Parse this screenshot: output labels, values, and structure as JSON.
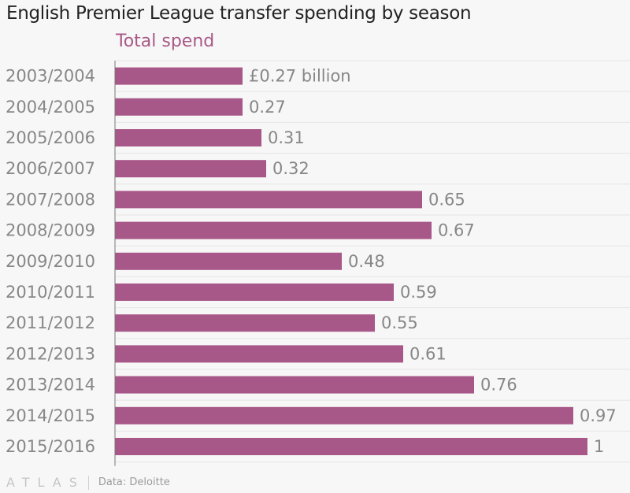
{
  "chart_data": {
    "type": "bar",
    "orientation": "horizontal",
    "title": "English Premier League transfer spending by season",
    "series": [
      {
        "name": "Total spend",
        "color": "#a85888",
        "values": [
          0.27,
          0.27,
          0.31,
          0.32,
          0.65,
          0.67,
          0.48,
          0.59,
          0.55,
          0.61,
          0.76,
          0.97,
          1
        ]
      }
    ],
    "categories": [
      "2003/2004",
      "2004/2005",
      "2005/2006",
      "2006/2007",
      "2007/2008",
      "2008/2009",
      "2009/2010",
      "2010/2011",
      "2011/2012",
      "2012/2013",
      "2013/2014",
      "2014/2015",
      "2015/2016"
    ],
    "value_labels": [
      "£0.27 billion",
      "0.27",
      "0.31",
      "0.32",
      "0.65",
      "0.67",
      "0.48",
      "0.59",
      "0.55",
      "0.61",
      "0.76",
      "0.97",
      "1"
    ],
    "xlim": [
      0,
      1
    ],
    "grid": true
  },
  "footer": {
    "brand": "ATLAS",
    "source": "Data: Deloitte"
  }
}
